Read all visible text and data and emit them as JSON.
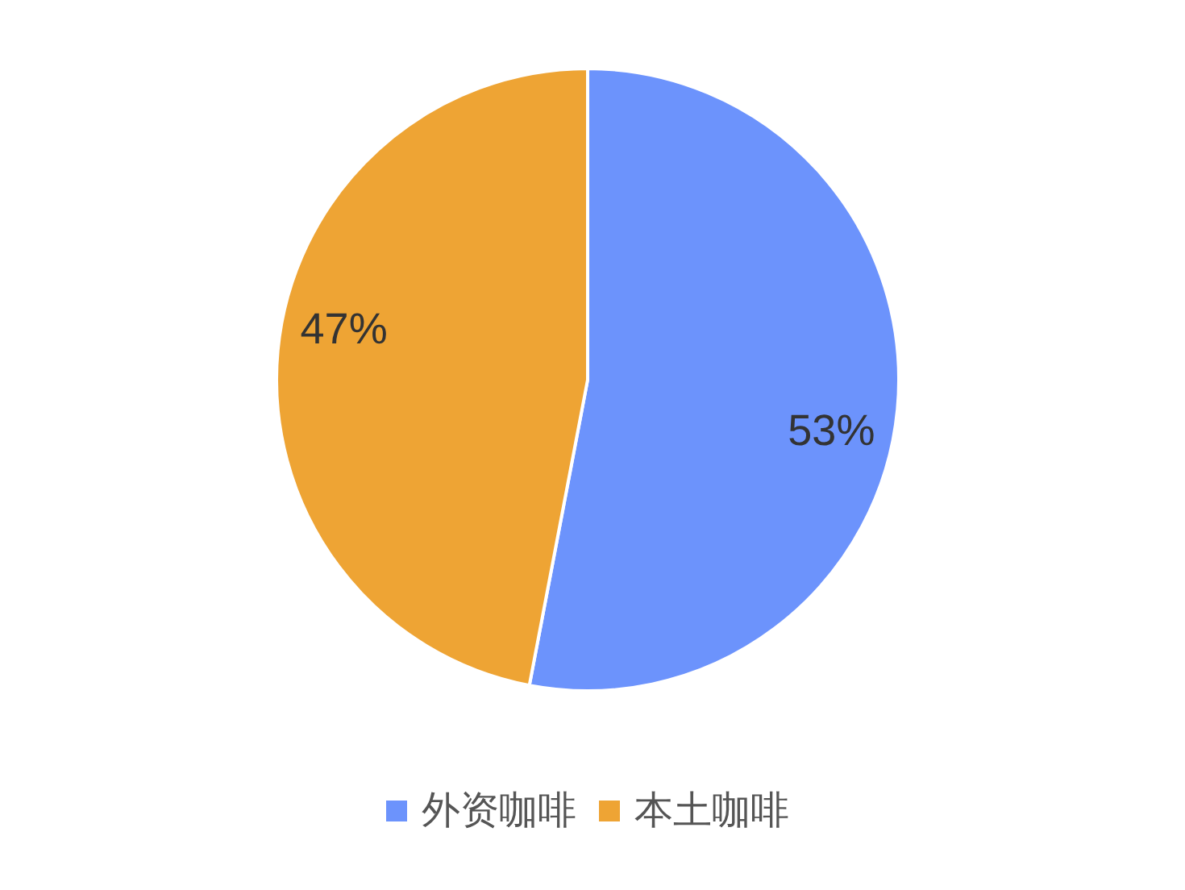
{
  "chart_data": {
    "type": "pie",
    "categories": [
      "外资咖啡",
      "本土咖啡"
    ],
    "values": [
      53,
      47
    ],
    "colors": [
      "#6c93fc",
      "#eea434"
    ],
    "value_labels": [
      "53%",
      "47%"
    ],
    "legend": "bottom"
  }
}
